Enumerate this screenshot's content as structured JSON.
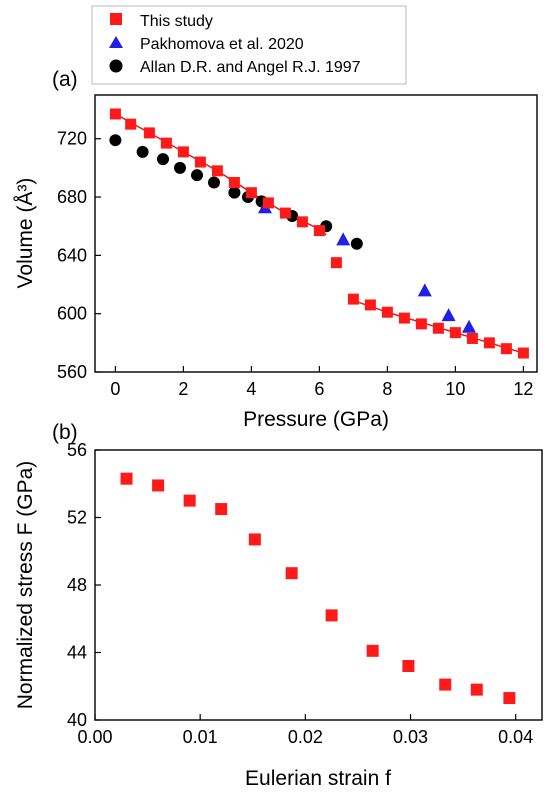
{
  "colors": {
    "this_study": "#ff1a1a",
    "pakhomova": "#1f1fe6",
    "allan": "#000000",
    "fit_line": "#e81a1a"
  },
  "chart_data": [
    {
      "type": "scatter",
      "panel_label": "(a)",
      "xlabel": "Pressure (GPa)",
      "ylabel": "Volume (Å³)",
      "xlim": [
        -0.6,
        12.4
      ],
      "ylim": [
        560,
        750
      ],
      "xticks": [
        0,
        2,
        4,
        6,
        8,
        10,
        12
      ],
      "xtick_labels": [
        "0",
        "2",
        "4",
        "6",
        "8",
        "10",
        "12"
      ],
      "yticks": [
        560,
        600,
        640,
        680,
        720
      ],
      "ytick_labels": [
        "560",
        "600",
        "640",
        "680",
        "720"
      ],
      "legend_position": "top-left",
      "series": [
        {
          "name": "This study",
          "marker": "square",
          "x": [
            0.0,
            0.45,
            1.0,
            1.5,
            2.0,
            2.5,
            3.0,
            3.5,
            4.0,
            4.5,
            5.0,
            5.5,
            6.0,
            6.5,
            7.0,
            7.5,
            8.0,
            8.5,
            9.0,
            9.5,
            10.0,
            10.5,
            11.0,
            11.5,
            12.0
          ],
          "y": [
            737,
            730,
            724,
            717,
            711,
            704,
            698,
            690,
            683,
            676,
            669,
            663,
            657,
            635,
            610,
            606,
            601,
            597,
            593,
            590,
            587,
            583,
            580,
            576,
            573
          ]
        },
        {
          "name": "Pakhomova et al. 2020",
          "marker": "triangle",
          "x": [
            4.4,
            6.7,
            9.1,
            9.8,
            10.4
          ],
          "y": [
            673,
            651,
            616,
            599,
            591
          ]
        },
        {
          "name": "Allan D.R. and Angel R.J. 1997",
          "marker": "circle",
          "x": [
            0.0,
            0.8,
            1.4,
            1.9,
            2.4,
            2.9,
            3.5,
            3.9,
            4.3,
            5.2,
            6.2,
            7.1
          ],
          "y": [
            719,
            711,
            706,
            700,
            695,
            690,
            683,
            680,
            677,
            667,
            660,
            648
          ]
        }
      ],
      "fit_lines": [
        {
          "x": [
            0.0,
            1.0,
            2.0,
            3.0,
            4.0,
            5.0,
            6.0,
            6.2
          ],
          "y": [
            737,
            724,
            711,
            698,
            683,
            669,
            658,
            654
          ]
        },
        {
          "x": [
            7.0,
            8.0,
            9.0,
            10.0,
            11.0,
            12.0
          ],
          "y": [
            609,
            601,
            594,
            587,
            580,
            573
          ]
        }
      ]
    },
    {
      "type": "scatter",
      "panel_label": "(b)",
      "xlabel": "Eulerian strain f",
      "ylabel": "Normalized stress F (GPa)",
      "xlim": [
        0.0,
        0.0425
      ],
      "ylim": [
        40,
        56
      ],
      "xticks": [
        0.0,
        0.01,
        0.02,
        0.03,
        0.04
      ],
      "xtick_labels": [
        "0.00",
        "0.01",
        "0.02",
        "0.03",
        "0.04"
      ],
      "yticks": [
        40,
        44,
        48,
        52,
        56
      ],
      "ytick_labels": [
        "40",
        "44",
        "48",
        "52",
        "56"
      ],
      "series": [
        {
          "name": "This study",
          "marker": "square",
          "x": [
            0.003,
            0.006,
            0.009,
            0.012,
            0.0152,
            0.0187,
            0.0225,
            0.0264,
            0.0298,
            0.0333,
            0.0363,
            0.0394
          ],
          "y": [
            54.3,
            53.9,
            53.0,
            52.5,
            50.7,
            48.7,
            46.2,
            44.1,
            43.2,
            42.1,
            41.8,
            41.3
          ]
        }
      ]
    }
  ]
}
